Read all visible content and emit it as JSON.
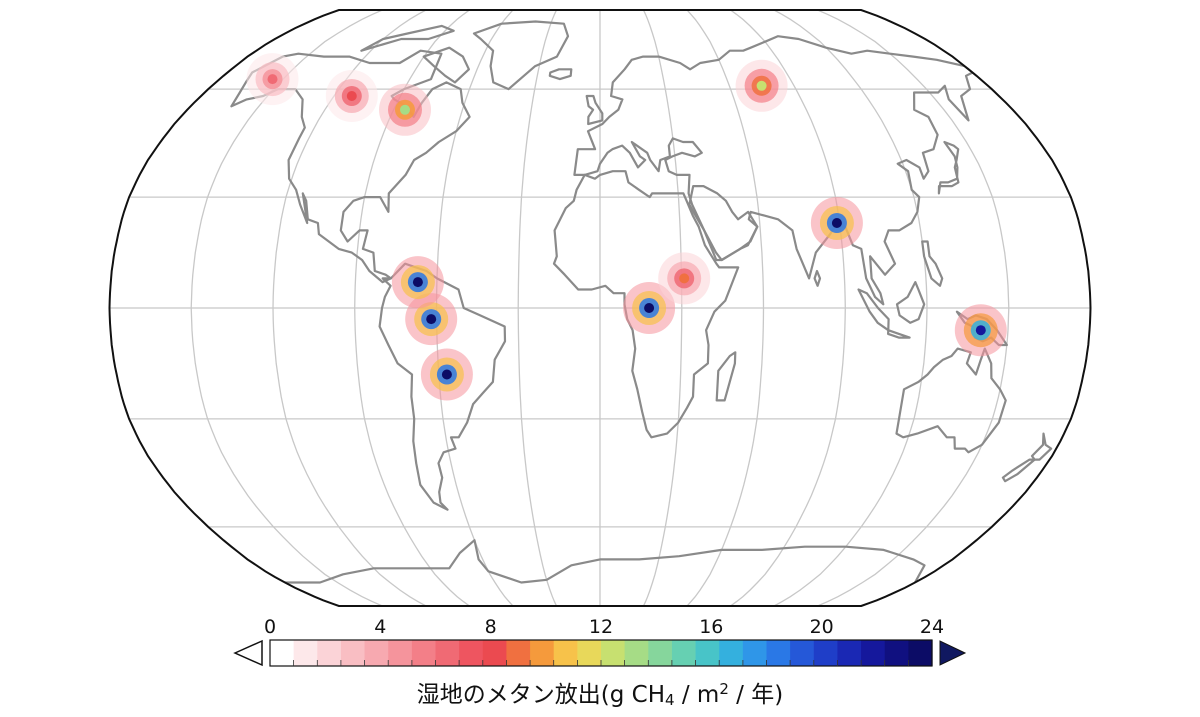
{
  "colorbar": {
    "ticks": [
      "0",
      "4",
      "8",
      "12",
      "16",
      "20",
      "24"
    ],
    "colors": [
      "#ffffff",
      "#fde8ea",
      "#fbd3d7",
      "#f9bec3",
      "#f7a9b0",
      "#f5949c",
      "#f37f88",
      "#f06a74",
      "#ee5560",
      "#eb4a50",
      "#f07040",
      "#f59a3c",
      "#f7c24a",
      "#e8d85a",
      "#c7e070",
      "#a6dc86",
      "#86d69c",
      "#66d0b2",
      "#48c4c8",
      "#34b0de",
      "#2f96e8",
      "#2a78e6",
      "#2558d8",
      "#1f3ec8",
      "#1a28b4",
      "#15189c",
      "#101080",
      "#0c0c66"
    ],
    "under_color": "#ffffff",
    "over_color": "#101860"
  },
  "caption": {
    "prefix": "湿地のメタン放出(g CH",
    "sub1": "4",
    "middle": " / m",
    "sup2": "2",
    "suffix": " / 年)"
  },
  "map": {
    "projection": "robinson",
    "land_color": "#8a8a8a",
    "graticule_color": "#c8c8c8",
    "hotspots": [
      {
        "name": "hudson-bay-lowlands",
        "lon": -85,
        "lat": 54,
        "value": 13
      },
      {
        "name": "west-canada",
        "lon": -112,
        "lat": 58,
        "value": 8
      },
      {
        "name": "alaska",
        "lon": -155,
        "lat": 63,
        "value": 6
      },
      {
        "name": "west-siberia",
        "lon": 75,
        "lat": 61,
        "value": 12
      },
      {
        "name": "amazon",
        "lon": -62,
        "lat": -3,
        "value": 24
      },
      {
        "name": "pantanal",
        "lon": -57,
        "lat": -18,
        "value": 24
      },
      {
        "name": "congo",
        "lon": 18,
        "lat": 0,
        "value": 24
      },
      {
        "name": "sudd",
        "lon": 31,
        "lat": 8,
        "value": 9
      },
      {
        "name": "ganges-delta",
        "lon": 89,
        "lat": 23,
        "value": 24
      },
      {
        "name": "new-guinea",
        "lon": 140,
        "lat": -6,
        "value": 22
      },
      {
        "name": "orinoco",
        "lon": -67,
        "lat": 7,
        "value": 24
      }
    ]
  }
}
